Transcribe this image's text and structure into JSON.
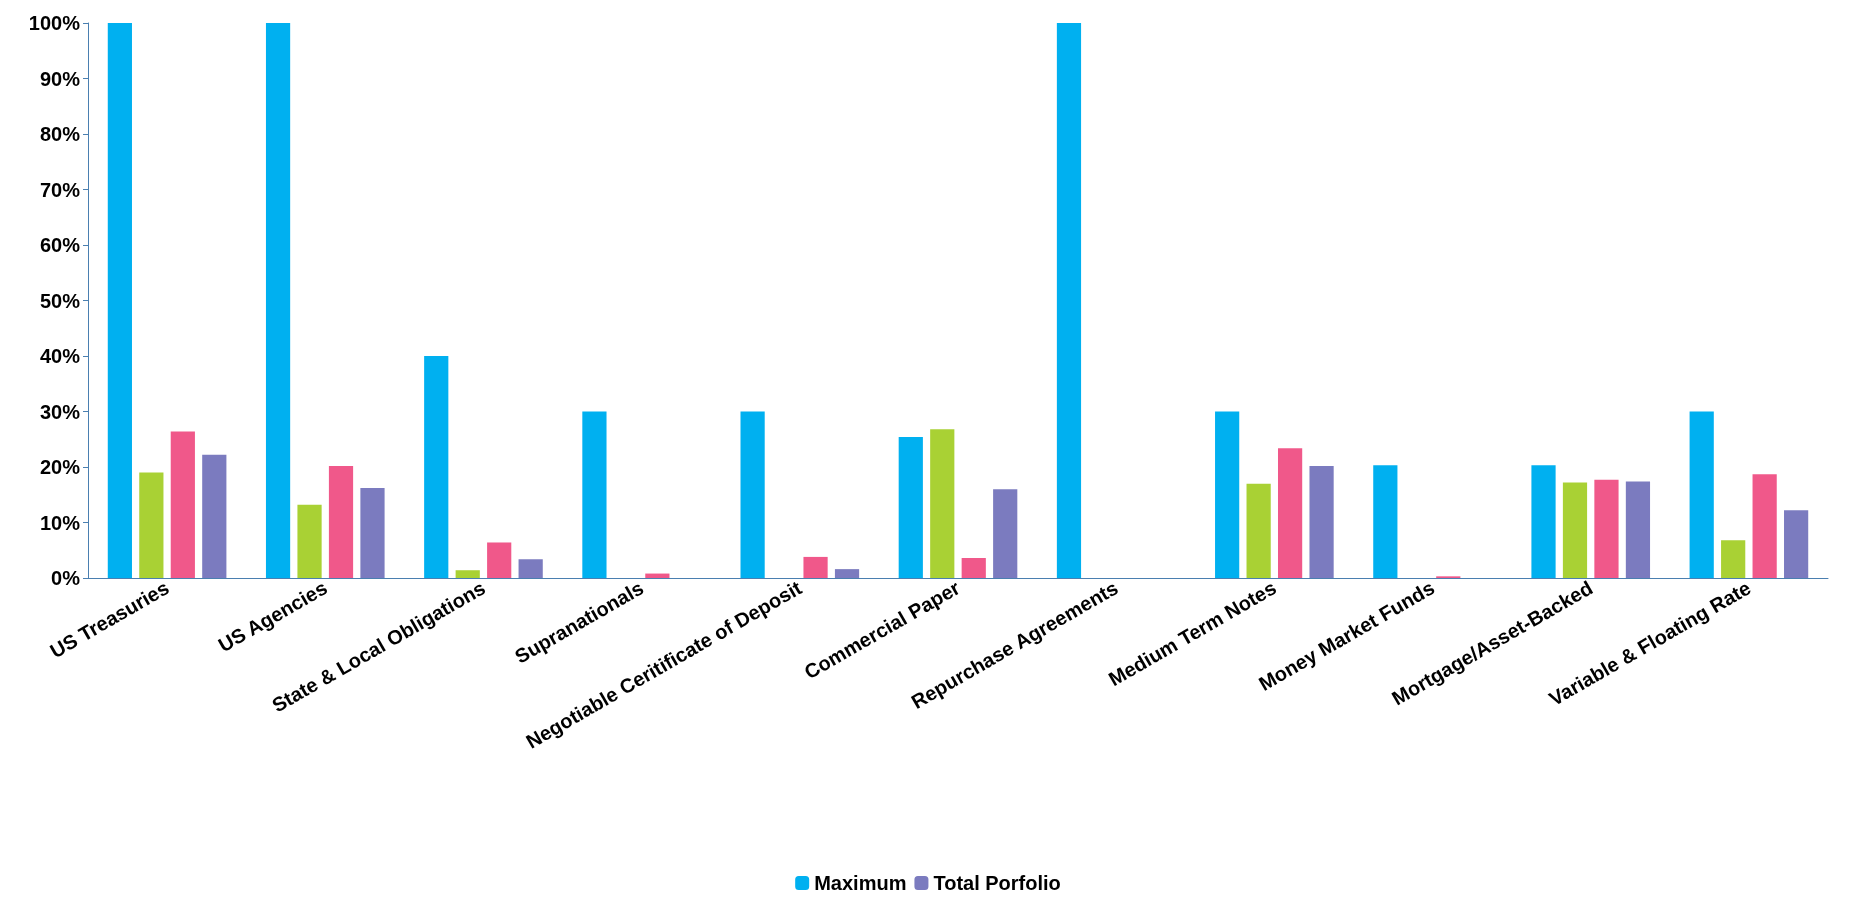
{
  "chart_data": {
    "type": "bar",
    "categories": [
      "US Treasuries",
      "US Agencies",
      "State & Local Obligations",
      "Supranationals",
      "Negotiable Ceritificate of Deposit",
      "Commercial Paper",
      "Repurchase Agreements",
      "Medium Term Notes",
      "Money Market Funds",
      "Mortgage/Asset-Backed",
      "Variable & Floating Rate"
    ],
    "series": [
      {
        "name": "Maximum",
        "color": "#00b0f0",
        "values": [
          100,
          100,
          40,
          30,
          30,
          25.4,
          100,
          30,
          20.3,
          20.3,
          30
        ]
      },
      {
        "color": "#a9d134",
        "values": [
          19,
          13.2,
          1.4,
          0,
          0,
          26.8,
          0,
          17,
          0,
          17.2,
          6.8
        ]
      },
      {
        "color": "#f0588a",
        "values": [
          26.4,
          20.2,
          6.4,
          0.8,
          3.8,
          3.6,
          0,
          23.4,
          0.3,
          17.7,
          18.7
        ]
      },
      {
        "name": "Total Porfolio",
        "color": "#7b7bbf",
        "values": [
          22.2,
          16.2,
          3.4,
          0,
          1.6,
          16,
          0,
          20.2,
          0,
          17.4,
          12.2
        ]
      }
    ],
    "ylim": [
      0,
      100
    ],
    "yticks": [
      {
        "value": 0,
        "label": "0%"
      },
      {
        "value": 10,
        "label": "10%"
      },
      {
        "value": 20,
        "label": "20%"
      },
      {
        "value": 30,
        "label": "30%"
      },
      {
        "value": 40,
        "label": "40%"
      },
      {
        "value": 50,
        "label": "50%"
      },
      {
        "value": 60,
        "label": "60%"
      },
      {
        "value": 70,
        "label": "70%"
      },
      {
        "value": 80,
        "label": "80%"
      },
      {
        "value": 90,
        "label": "90%"
      },
      {
        "value": 100,
        "label": "100%"
      }
    ],
    "grid": false,
    "legend": "bottom"
  }
}
